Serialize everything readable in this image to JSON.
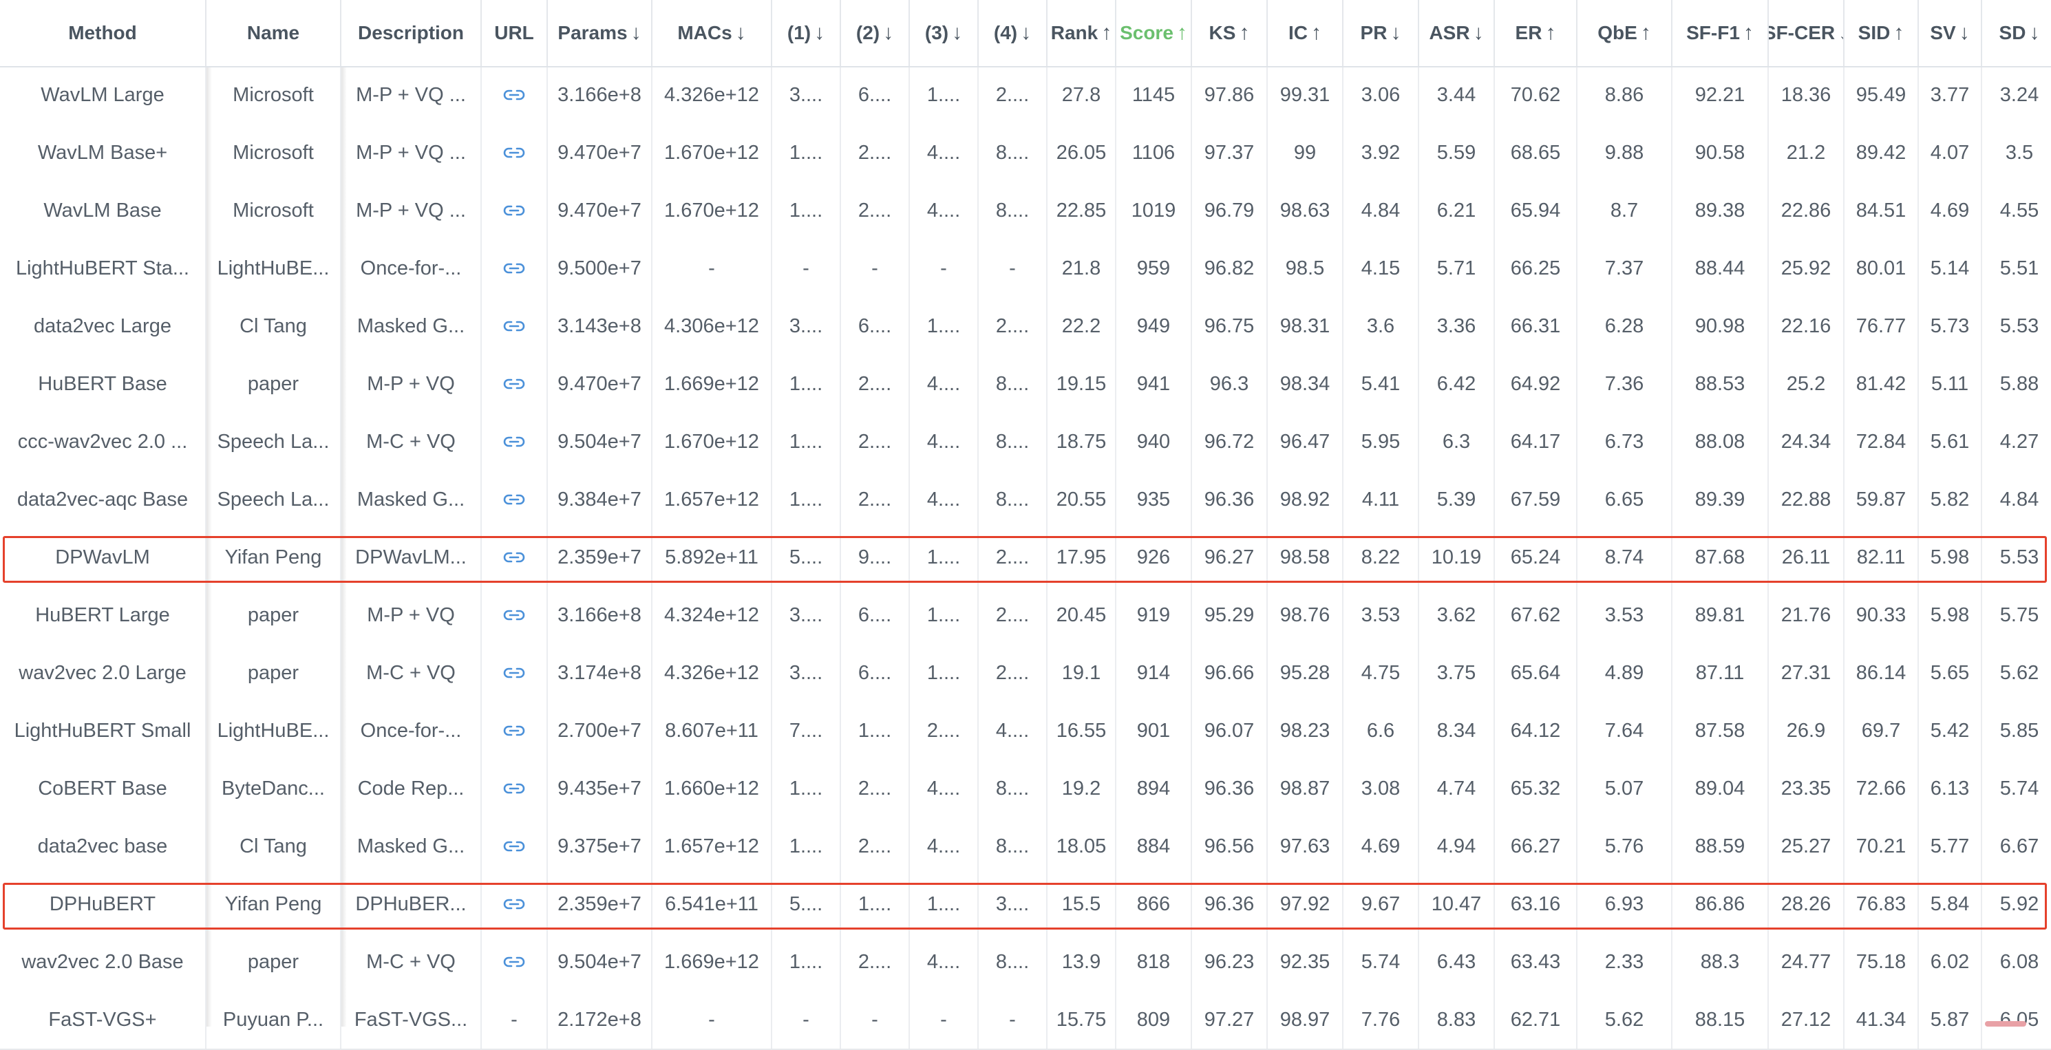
{
  "columns": [
    {
      "label": "Method",
      "arrow": ""
    },
    {
      "label": "Name",
      "arrow": ""
    },
    {
      "label": "Description",
      "arrow": ""
    },
    {
      "label": "URL",
      "arrow": ""
    },
    {
      "label": "Params",
      "arrow": "↓"
    },
    {
      "label": "MACs",
      "arrow": "↓"
    },
    {
      "label": "(1)",
      "arrow": "↓"
    },
    {
      "label": "(2)",
      "arrow": "↓"
    },
    {
      "label": "(3)",
      "arrow": "↓"
    },
    {
      "label": "(4)",
      "arrow": "↓"
    },
    {
      "label": "Rank",
      "arrow": "↑"
    },
    {
      "label": "Score",
      "arrow": "↑",
      "accent": true
    },
    {
      "label": "KS",
      "arrow": "↑"
    },
    {
      "label": "IC",
      "arrow": "↑"
    },
    {
      "label": "PR",
      "arrow": "↓"
    },
    {
      "label": "ASR",
      "arrow": "↓"
    },
    {
      "label": "ER",
      "arrow": "↑"
    },
    {
      "label": "QbE",
      "arrow": "↑"
    },
    {
      "label": "SF-F1",
      "arrow": "↑"
    },
    {
      "label": "SF-CER",
      "arrow": "↓"
    },
    {
      "label": "SID",
      "arrow": "↑"
    },
    {
      "label": "SV",
      "arrow": "↓"
    },
    {
      "label": "SD",
      "arrow": "↓"
    }
  ],
  "rows": [
    {
      "method": "WavLM Large",
      "name": "Microsoft",
      "description": "M-P + VQ ...",
      "url": "link",
      "params": "3.166e+8",
      "macs": "4.326e+12",
      "m1": "3....",
      "m2": "6....",
      "m3": "1....",
      "m4": "2....",
      "rank": "27.8",
      "score": "1145",
      "ks": "97.86",
      "ic": "99.31",
      "pr": "3.06",
      "asr": "3.44",
      "er": "70.62",
      "qbe": "8.86",
      "sff1": "92.21",
      "sfcer": "18.36",
      "sid": "95.49",
      "sv": "3.77",
      "sd": "3.24"
    },
    {
      "method": "WavLM Base+",
      "name": "Microsoft",
      "description": "M-P + VQ ...",
      "url": "link",
      "params": "9.470e+7",
      "macs": "1.670e+12",
      "m1": "1....",
      "m2": "2....",
      "m3": "4....",
      "m4": "8....",
      "rank": "26.05",
      "score": "1106",
      "ks": "97.37",
      "ic": "99",
      "pr": "3.92",
      "asr": "5.59",
      "er": "68.65",
      "qbe": "9.88",
      "sff1": "90.58",
      "sfcer": "21.2",
      "sid": "89.42",
      "sv": "4.07",
      "sd": "3.5"
    },
    {
      "method": "WavLM Base",
      "name": "Microsoft",
      "description": "M-P + VQ ...",
      "url": "link",
      "params": "9.470e+7",
      "macs": "1.670e+12",
      "m1": "1....",
      "m2": "2....",
      "m3": "4....",
      "m4": "8....",
      "rank": "22.85",
      "score": "1019",
      "ks": "96.79",
      "ic": "98.63",
      "pr": "4.84",
      "asr": "6.21",
      "er": "65.94",
      "qbe": "8.7",
      "sff1": "89.38",
      "sfcer": "22.86",
      "sid": "84.51",
      "sv": "4.69",
      "sd": "4.55"
    },
    {
      "method": "LightHuBERT Sta...",
      "name": "LightHuBE...",
      "description": "Once-for-...",
      "url": "link",
      "params": "9.500e+7",
      "macs": "-",
      "m1": "-",
      "m2": "-",
      "m3": "-",
      "m4": "-",
      "rank": "21.8",
      "score": "959",
      "ks": "96.82",
      "ic": "98.5",
      "pr": "4.15",
      "asr": "5.71",
      "er": "66.25",
      "qbe": "7.37",
      "sff1": "88.44",
      "sfcer": "25.92",
      "sid": "80.01",
      "sv": "5.14",
      "sd": "5.51"
    },
    {
      "method": "data2vec Large",
      "name": "Cl Tang",
      "description": "Masked G...",
      "url": "link",
      "params": "3.143e+8",
      "macs": "4.306e+12",
      "m1": "3....",
      "m2": "6....",
      "m3": "1....",
      "m4": "2....",
      "rank": "22.2",
      "score": "949",
      "ks": "96.75",
      "ic": "98.31",
      "pr": "3.6",
      "asr": "3.36",
      "er": "66.31",
      "qbe": "6.28",
      "sff1": "90.98",
      "sfcer": "22.16",
      "sid": "76.77",
      "sv": "5.73",
      "sd": "5.53"
    },
    {
      "method": "HuBERT Base",
      "name": "paper",
      "description": "M-P + VQ",
      "url": "link",
      "params": "9.470e+7",
      "macs": "1.669e+12",
      "m1": "1....",
      "m2": "2....",
      "m3": "4....",
      "m4": "8....",
      "rank": "19.15",
      "score": "941",
      "ks": "96.3",
      "ic": "98.34",
      "pr": "5.41",
      "asr": "6.42",
      "er": "64.92",
      "qbe": "7.36",
      "sff1": "88.53",
      "sfcer": "25.2",
      "sid": "81.42",
      "sv": "5.11",
      "sd": "5.88"
    },
    {
      "method": "ccc-wav2vec 2.0 ...",
      "name": "Speech La...",
      "description": "M-C + VQ",
      "url": "link",
      "params": "9.504e+7",
      "macs": "1.670e+12",
      "m1": "1....",
      "m2": "2....",
      "m3": "4....",
      "m4": "8....",
      "rank": "18.75",
      "score": "940",
      "ks": "96.72",
      "ic": "96.47",
      "pr": "5.95",
      "asr": "6.3",
      "er": "64.17",
      "qbe": "6.73",
      "sff1": "88.08",
      "sfcer": "24.34",
      "sid": "72.84",
      "sv": "5.61",
      "sd": "4.27"
    },
    {
      "method": "data2vec-aqc Base",
      "name": "Speech La...",
      "description": "Masked G...",
      "url": "link",
      "params": "9.384e+7",
      "macs": "1.657e+12",
      "m1": "1....",
      "m2": "2....",
      "m3": "4....",
      "m4": "8....",
      "rank": "20.55",
      "score": "935",
      "ks": "96.36",
      "ic": "98.92",
      "pr": "4.11",
      "asr": "5.39",
      "er": "67.59",
      "qbe": "6.65",
      "sff1": "89.39",
      "sfcer": "22.88",
      "sid": "59.87",
      "sv": "5.82",
      "sd": "4.84"
    },
    {
      "method": "DPWavLM",
      "name": "Yifan Peng",
      "description": "DPWavLM...",
      "url": "link",
      "params": "2.359e+7",
      "macs": "5.892e+11",
      "m1": "5....",
      "m2": "9....",
      "m3": "1....",
      "m4": "2....",
      "rank": "17.95",
      "score": "926",
      "ks": "96.27",
      "ic": "98.58",
      "pr": "8.22",
      "asr": "10.19",
      "er": "65.24",
      "qbe": "8.74",
      "sff1": "87.68",
      "sfcer": "26.11",
      "sid": "82.11",
      "sv": "5.98",
      "sd": "5.53",
      "highlight": true
    },
    {
      "method": "HuBERT Large",
      "name": "paper",
      "description": "M-P + VQ",
      "url": "link",
      "params": "3.166e+8",
      "macs": "4.324e+12",
      "m1": "3....",
      "m2": "6....",
      "m3": "1....",
      "m4": "2....",
      "rank": "20.45",
      "score": "919",
      "ks": "95.29",
      "ic": "98.76",
      "pr": "3.53",
      "asr": "3.62",
      "er": "67.62",
      "qbe": "3.53",
      "sff1": "89.81",
      "sfcer": "21.76",
      "sid": "90.33",
      "sv": "5.98",
      "sd": "5.75"
    },
    {
      "method": "wav2vec 2.0 Large",
      "name": "paper",
      "description": "M-C + VQ",
      "url": "link",
      "params": "3.174e+8",
      "macs": "4.326e+12",
      "m1": "3....",
      "m2": "6....",
      "m3": "1....",
      "m4": "2....",
      "rank": "19.1",
      "score": "914",
      "ks": "96.66",
      "ic": "95.28",
      "pr": "4.75",
      "asr": "3.75",
      "er": "65.64",
      "qbe": "4.89",
      "sff1": "87.11",
      "sfcer": "27.31",
      "sid": "86.14",
      "sv": "5.65",
      "sd": "5.62"
    },
    {
      "method": "LightHuBERT Small",
      "name": "LightHuBE...",
      "description": "Once-for-...",
      "url": "link",
      "params": "2.700e+7",
      "macs": "8.607e+11",
      "m1": "7....",
      "m2": "1....",
      "m3": "2....",
      "m4": "4....",
      "rank": "16.55",
      "score": "901",
      "ks": "96.07",
      "ic": "98.23",
      "pr": "6.6",
      "asr": "8.34",
      "er": "64.12",
      "qbe": "7.64",
      "sff1": "87.58",
      "sfcer": "26.9",
      "sid": "69.7",
      "sv": "5.42",
      "sd": "5.85"
    },
    {
      "method": "CoBERT Base",
      "name": "ByteDanc...",
      "description": "Code Rep...",
      "url": "link",
      "params": "9.435e+7",
      "macs": "1.660e+12",
      "m1": "1....",
      "m2": "2....",
      "m3": "4....",
      "m4": "8....",
      "rank": "19.2",
      "score": "894",
      "ks": "96.36",
      "ic": "98.87",
      "pr": "3.08",
      "asr": "4.74",
      "er": "65.32",
      "qbe": "5.07",
      "sff1": "89.04",
      "sfcer": "23.35",
      "sid": "72.66",
      "sv": "6.13",
      "sd": "5.74"
    },
    {
      "method": "data2vec base",
      "name": "Cl Tang",
      "description": "Masked G...",
      "url": "link",
      "params": "9.375e+7",
      "macs": "1.657e+12",
      "m1": "1....",
      "m2": "2....",
      "m3": "4....",
      "m4": "8....",
      "rank": "18.05",
      "score": "884",
      "ks": "96.56",
      "ic": "97.63",
      "pr": "4.69",
      "asr": "4.94",
      "er": "66.27",
      "qbe": "5.76",
      "sff1": "88.59",
      "sfcer": "25.27",
      "sid": "70.21",
      "sv": "5.77",
      "sd": "6.67"
    },
    {
      "method": "DPHuBERT",
      "name": "Yifan Peng",
      "description": "DPHuBER...",
      "url": "link",
      "params": "2.359e+7",
      "macs": "6.541e+11",
      "m1": "5....",
      "m2": "1....",
      "m3": "1....",
      "m4": "3....",
      "rank": "15.5",
      "score": "866",
      "ks": "96.36",
      "ic": "97.92",
      "pr": "9.67",
      "asr": "10.47",
      "er": "63.16",
      "qbe": "6.93",
      "sff1": "86.86",
      "sfcer": "28.26",
      "sid": "76.83",
      "sv": "5.84",
      "sd": "5.92",
      "highlight": true
    },
    {
      "method": "wav2vec 2.0 Base",
      "name": "paper",
      "description": "M-C + VQ",
      "url": "link",
      "params": "9.504e+7",
      "macs": "1.669e+12",
      "m1": "1....",
      "m2": "2....",
      "m3": "4....",
      "m4": "8....",
      "rank": "13.9",
      "score": "818",
      "ks": "96.23",
      "ic": "92.35",
      "pr": "5.74",
      "asr": "6.43",
      "er": "63.43",
      "qbe": "2.33",
      "sff1": "88.3",
      "sfcer": "24.77",
      "sid": "75.18",
      "sv": "6.02",
      "sd": "6.08"
    },
    {
      "method": "FaST-VGS+",
      "name": "Puyuan P...",
      "description": "FaST-VGS...",
      "url": "-",
      "params": "2.172e+8",
      "macs": "-",
      "m1": "-",
      "m2": "-",
      "m3": "-",
      "m4": "-",
      "rank": "15.75",
      "score": "809",
      "ks": "97.27",
      "ic": "98.97",
      "pr": "7.76",
      "asr": "8.83",
      "er": "62.71",
      "qbe": "5.62",
      "sff1": "88.15",
      "sfcer": "27.12",
      "sid": "41.34",
      "sv": "5.87",
      "sd": "6.05"
    }
  ],
  "colors": {
    "accent": "#6bbf6e",
    "highlight": "#e5412c",
    "link": "#4a90d9"
  },
  "icons": {
    "url": "link-icon"
  }
}
